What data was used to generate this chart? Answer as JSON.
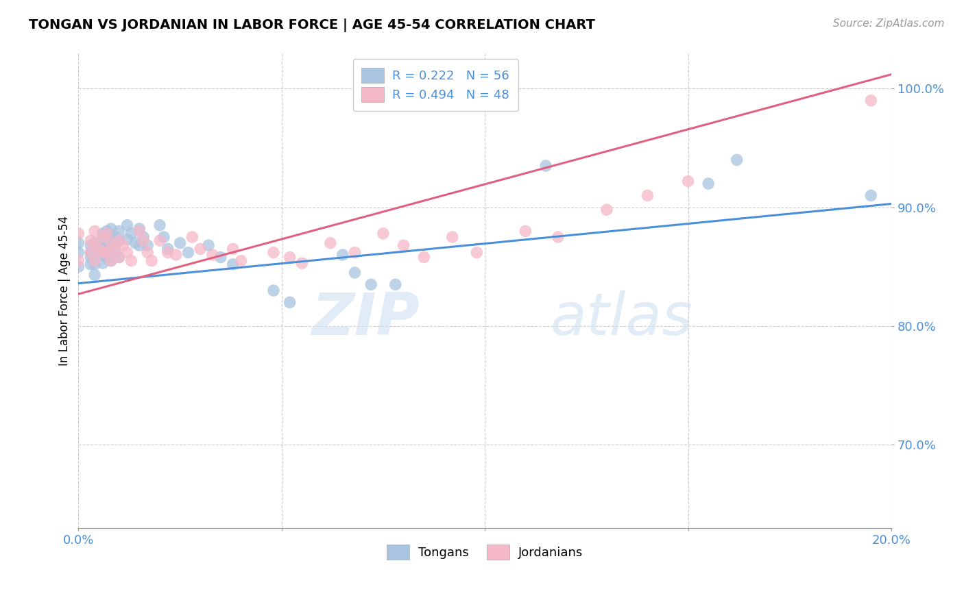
{
  "title": "TONGAN VS JORDANIAN IN LABOR FORCE | AGE 45-54 CORRELATION CHART",
  "source_text": "Source: ZipAtlas.com",
  "ylabel": "In Labor Force | Age 45-54",
  "xlim": [
    0.0,
    0.2
  ],
  "ylim": [
    0.63,
    1.03
  ],
  "blue_R": 0.222,
  "blue_N": 56,
  "pink_R": 0.494,
  "pink_N": 48,
  "blue_color": "#a8c4e0",
  "pink_color": "#f4b8c8",
  "blue_line_color": "#4a90d9",
  "pink_line_color": "#e06080",
  "watermark_zip": "ZIP",
  "watermark_atlas": "atlas",
  "tongans_x": [
    0.0,
    0.0,
    0.0,
    0.003,
    0.003,
    0.003,
    0.003,
    0.004,
    0.004,
    0.004,
    0.004,
    0.004,
    0.006,
    0.006,
    0.006,
    0.006,
    0.006,
    0.007,
    0.007,
    0.007,
    0.007,
    0.008,
    0.008,
    0.008,
    0.008,
    0.009,
    0.009,
    0.01,
    0.01,
    0.01,
    0.012,
    0.012,
    0.013,
    0.014,
    0.015,
    0.015,
    0.016,
    0.017,
    0.02,
    0.021,
    0.022,
    0.025,
    0.027,
    0.032,
    0.035,
    0.038,
    0.048,
    0.052,
    0.065,
    0.068,
    0.072,
    0.078,
    0.115,
    0.155,
    0.162,
    0.195
  ],
  "tongans_y": [
    0.87,
    0.862,
    0.85,
    0.868,
    0.862,
    0.858,
    0.852,
    0.87,
    0.865,
    0.86,
    0.852,
    0.843,
    0.878,
    0.873,
    0.867,
    0.86,
    0.853,
    0.88,
    0.873,
    0.865,
    0.857,
    0.882,
    0.876,
    0.868,
    0.855,
    0.875,
    0.862,
    0.88,
    0.872,
    0.858,
    0.885,
    0.873,
    0.878,
    0.87,
    0.882,
    0.868,
    0.875,
    0.868,
    0.885,
    0.875,
    0.865,
    0.87,
    0.862,
    0.868,
    0.858,
    0.852,
    0.83,
    0.82,
    0.86,
    0.845,
    0.835,
    0.835,
    0.935,
    0.92,
    0.94,
    0.91
  ],
  "jordanians_x": [
    0.0,
    0.0,
    0.003,
    0.003,
    0.004,
    0.004,
    0.004,
    0.005,
    0.006,
    0.006,
    0.007,
    0.007,
    0.008,
    0.008,
    0.009,
    0.01,
    0.01,
    0.011,
    0.012,
    0.013,
    0.015,
    0.016,
    0.017,
    0.018,
    0.02,
    0.022,
    0.024,
    0.028,
    0.03,
    0.033,
    0.038,
    0.04,
    0.048,
    0.052,
    0.055,
    0.062,
    0.068,
    0.075,
    0.08,
    0.085,
    0.092,
    0.098,
    0.11,
    0.118,
    0.13,
    0.14,
    0.15,
    0.195
  ],
  "jordanians_y": [
    0.878,
    0.855,
    0.872,
    0.862,
    0.88,
    0.87,
    0.855,
    0.865,
    0.875,
    0.862,
    0.878,
    0.862,
    0.87,
    0.855,
    0.865,
    0.872,
    0.858,
    0.868,
    0.862,
    0.855,
    0.88,
    0.872,
    0.862,
    0.855,
    0.872,
    0.862,
    0.86,
    0.875,
    0.865,
    0.86,
    0.865,
    0.855,
    0.862,
    0.858,
    0.853,
    0.87,
    0.862,
    0.878,
    0.868,
    0.858,
    0.875,
    0.862,
    0.88,
    0.875,
    0.898,
    0.91,
    0.922,
    0.99
  ]
}
